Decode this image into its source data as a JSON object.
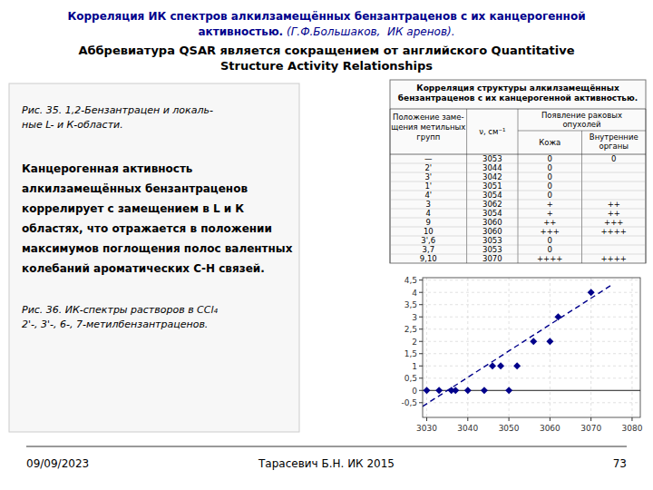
{
  "chart_data": {
    "type": "scatter",
    "title": [
      "Корреляция ИК спектров алкилзамещённых бензантраценов с их канцерогенной",
      "активностью.",
      " (Г.Ф.Большаков,  ИК аренов)."
    ],
    "subtitle": [
      "Аббревиатура QSAR является сокращением от английского Quantitative",
      "Structure Activity Relationships"
    ],
    "series": [
      {
        "type": "scatter",
        "color": "#00008B",
        "marker": "diamond",
        "x": [
          3030,
          3033,
          3036,
          3037,
          3040,
          3044,
          3046,
          3048,
          3050,
          3052,
          3056,
          3060,
          3062,
          3070
        ],
        "values": [
          0,
          0,
          0,
          0,
          0,
          0,
          1,
          1,
          0,
          1,
          2,
          2,
          3,
          4
        ]
      },
      {
        "type": "line",
        "color": "#00008B",
        "line_style": "dashed",
        "x": [
          3029,
          3075
        ],
        "values": [
          -0.65,
          4.3
        ]
      }
    ],
    "xlim": [
      3029,
      3082
    ],
    "ylim": [
      -1.1,
      4.6
    ],
    "xticks": [
      3030,
      3040,
      3050,
      3060,
      3070,
      3080
    ],
    "yticks": [
      {
        "value": -0.5,
        "label": "-0,5"
      },
      0,
      {
        "value": 0.5,
        "label": "0,5"
      },
      1,
      {
        "value": 1.5,
        "label": "1,5"
      },
      2,
      {
        "value": 2.5,
        "label": "2,5"
      },
      3,
      {
        "value": 3.5,
        "label": "3,5"
      },
      4,
      {
        "value": 4.5,
        "label": "4,5"
      }
    ],
    "grid": true,
    "table": {
      "title": [
        "Корреляция структуры алкилзамещённых",
        "бензантраценов с их канцерогенной активностью."
      ],
      "col1": [
        "Положение заме-",
        "щения метильных",
        "групп"
      ],
      "col2": "ν, см⁻¹",
      "col3_header": [
        "Появление раковых",
        "опухолей"
      ],
      "col3a": "Кожа",
      "col3b": [
        "Внутренние",
        "органы"
      ],
      "rows": [
        [
          "—",
          "3053",
          "0",
          "0"
        ],
        [
          "2'",
          "3044",
          "0",
          null
        ],
        [
          "3'",
          "3042",
          "0",
          null
        ],
        [
          "1'",
          "3051",
          "0",
          null
        ],
        [
          "4'",
          "3054",
          "0",
          null
        ],
        [
          "3",
          "3062",
          "+",
          "++"
        ],
        [
          "4",
          "3054",
          "+",
          "++"
        ],
        [
          "9",
          "3060",
          "++",
          "+++"
        ],
        [
          "10",
          "3060",
          "+++",
          "++++"
        ],
        [
          "3',6",
          "3053",
          "0",
          null
        ],
        [
          "3,7",
          "3053",
          "0",
          null
        ],
        [
          "9,10",
          "3070",
          "++++",
          "++++"
        ]
      ]
    },
    "annotations": {
      "fig35_caption": [
        "Рис. 35. 1,2-Бензантрацен и локаль-",
        "ные  L-  и  К-области."
      ],
      "text": [
        "Канцерогенная активность",
        "алкилзамещённых бензантраценов",
        "коррелирует с замещением в L и К",
        "областях, что отражается в положении",
        "максимумов поглощения полос валентных",
        "колебаний ароматических С-Н связей."
      ],
      "fig36_caption": [
        "Рис. 36. ИК-спектры растворов в CCl₄",
        "2'-, 3'-, 6-, 7-метилбензантраценов."
      ]
    },
    "footer": [
      "09/09/2023",
      "Тарасевич Б.Н.  ИК 2015",
      "73"
    ]
  }
}
